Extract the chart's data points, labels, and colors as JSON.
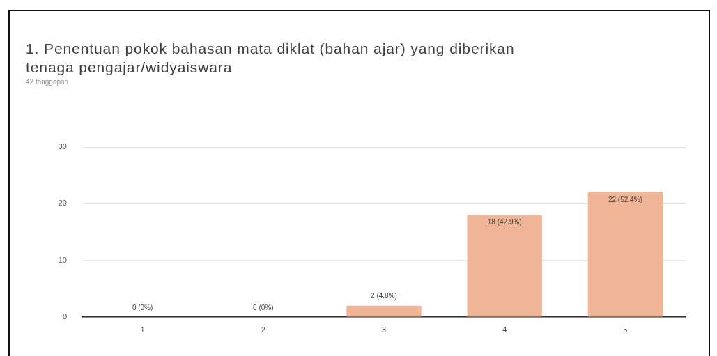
{
  "chart_data": {
    "type": "bar",
    "title": "1. Penentuan pokok bahasan mata diklat (bahan ajar) yang diberikan tenaga pengajar/widyaiswara",
    "subtitle": "42 tanggapan",
    "categories": [
      "1",
      "2",
      "3",
      "4",
      "5"
    ],
    "values": [
      0,
      0,
      2,
      18,
      22
    ],
    "color": "#f0b497",
    "value_labels": [
      "0 (0%)",
      "0 (0%)",
      "2 (4.8%)",
      "18 (42.9%)",
      "22 (52.4%)"
    ],
    "ylim": [
      0,
      30
    ],
    "yticks": [
      0,
      10,
      20,
      30
    ],
    "grid": "y"
  }
}
